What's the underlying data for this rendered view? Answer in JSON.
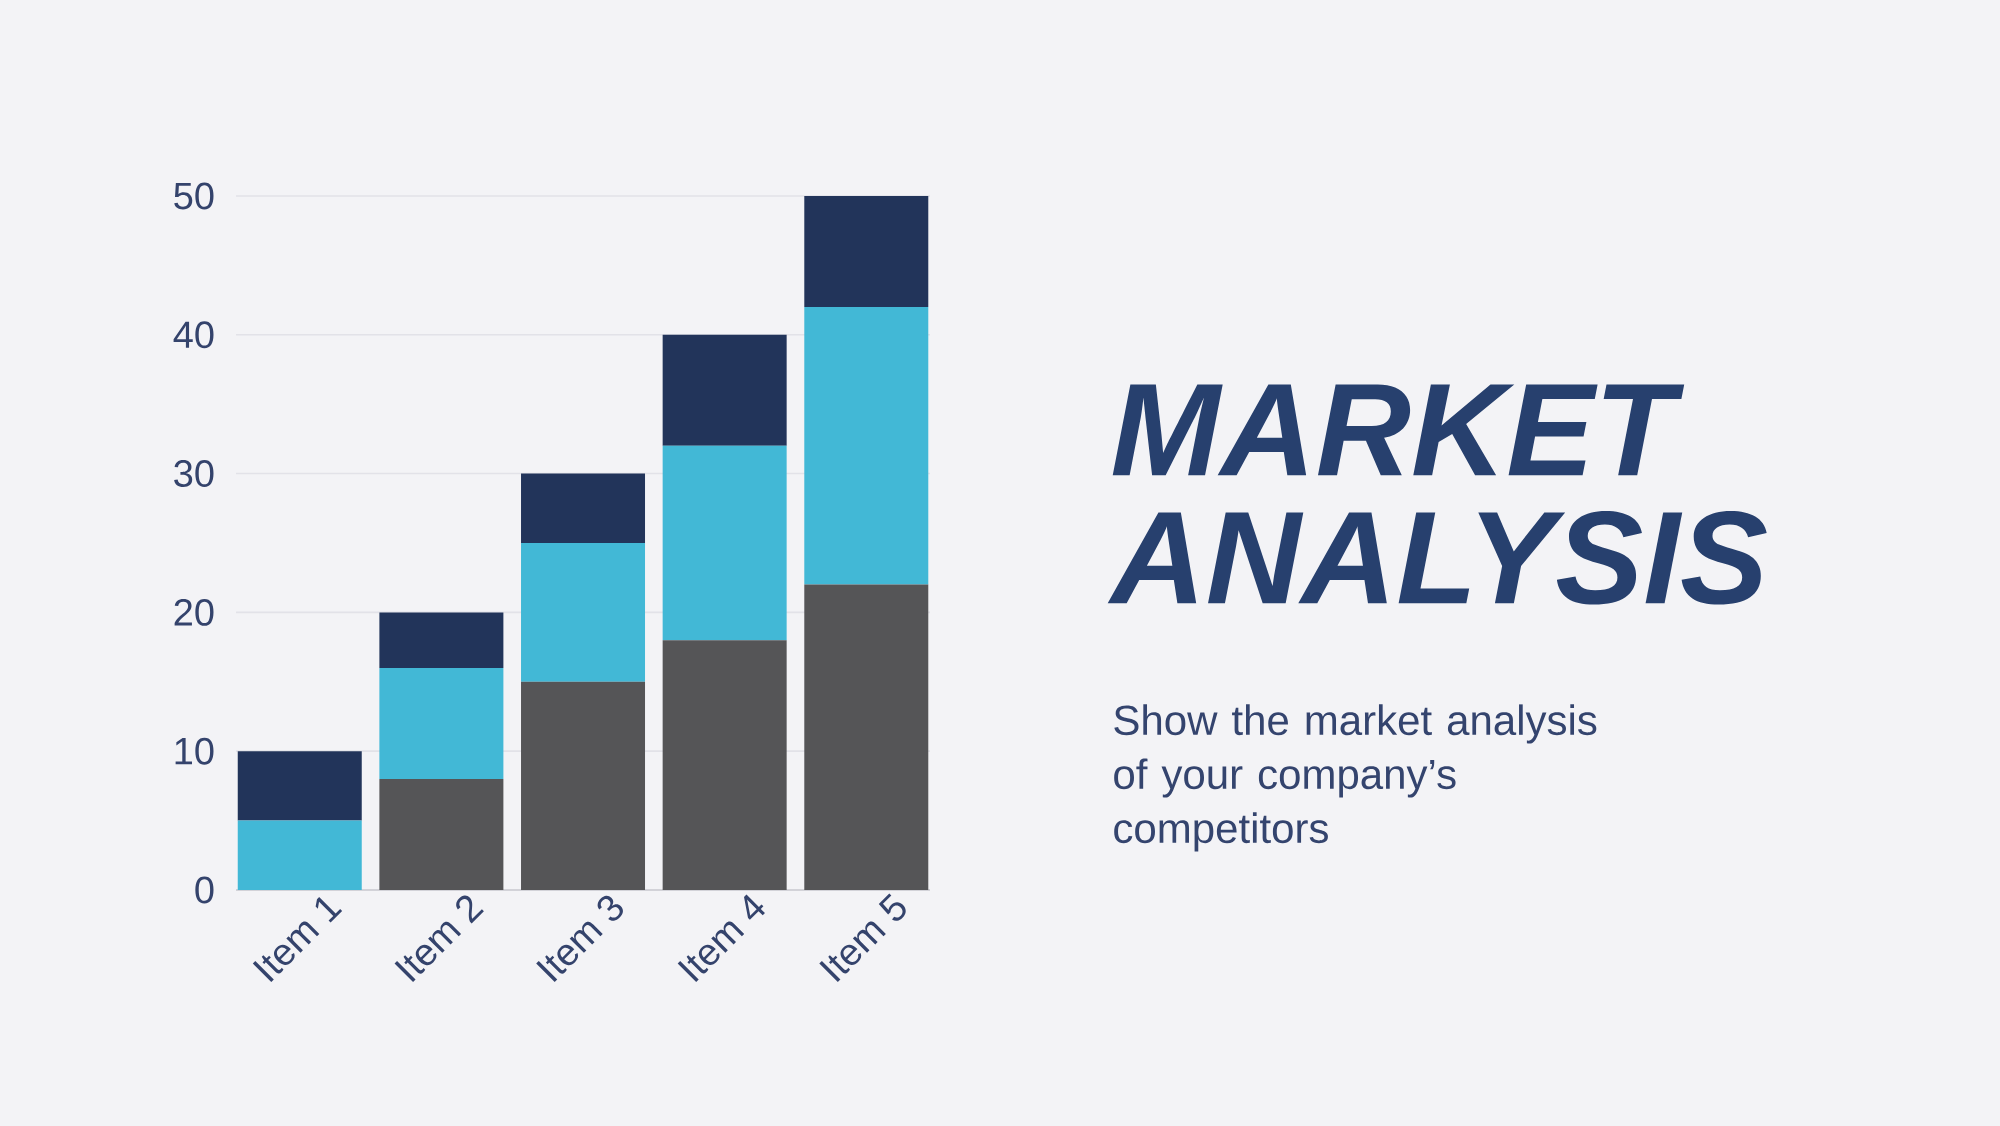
{
  "chart_data": {
    "type": "bar",
    "title": "MARKET ANALYSIS",
    "subtitle": "Show the market analysis of your company’s competitors",
    "categories": [
      "Item 1",
      "Item 2",
      "Item 3",
      "Item 4",
      "Item 5"
    ],
    "stacked": true,
    "series": [
      {
        "color": "#555557",
        "values": [
          0,
          8,
          15,
          18,
          22
        ]
      },
      {
        "color": "#42b8d6",
        "values": [
          5,
          8,
          10,
          14,
          20
        ]
      },
      {
        "color": "#22345a",
        "values": [
          5,
          4,
          5,
          8,
          8
        ]
      }
    ],
    "ylim": [
      0,
      50
    ],
    "yticks": [
      0,
      10,
      20,
      30,
      40,
      50
    ],
    "grid": "y"
  }
}
